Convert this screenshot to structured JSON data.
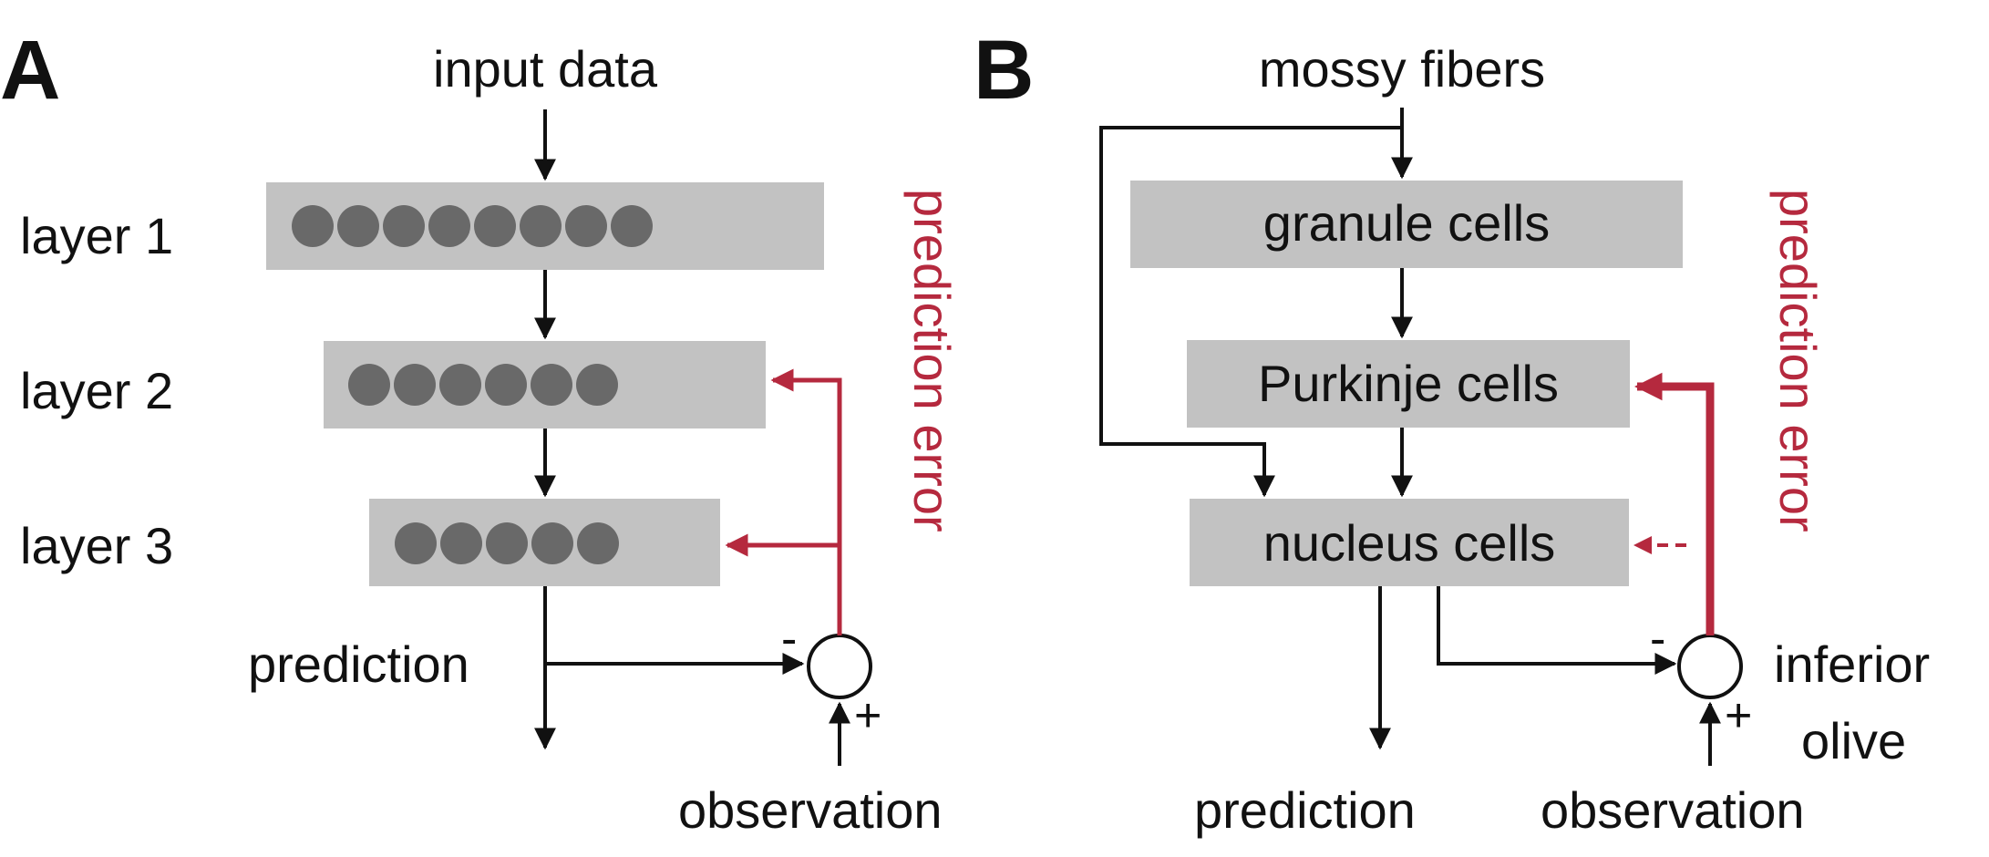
{
  "colors": {
    "box_fill": "#c2c2c2",
    "neuron_fill": "#696969",
    "line": "#111111",
    "error_red": "#b5293e"
  },
  "panel_a": {
    "letter": "A",
    "input_label": "input data",
    "layers": [
      {
        "label": "layer 1",
        "units": 8
      },
      {
        "label": "layer 2",
        "units": 6
      },
      {
        "label": "layer 3",
        "units": 5
      }
    ],
    "prediction_label": "prediction",
    "observation_label": "observation",
    "error_label": "prediction error",
    "minus_sign": "-",
    "plus_sign": "+"
  },
  "panel_b": {
    "letter": "B",
    "input_label": "mossy fibers",
    "boxes": [
      "granule cells",
      "Purkinje cells",
      "nucleus cells"
    ],
    "prediction_label": "prediction",
    "observation_label": "observation",
    "comparator_label_line1": "inferior",
    "comparator_label_line2": "olive",
    "error_label": "prediction error",
    "minus_sign": "-",
    "plus_sign": "+"
  }
}
